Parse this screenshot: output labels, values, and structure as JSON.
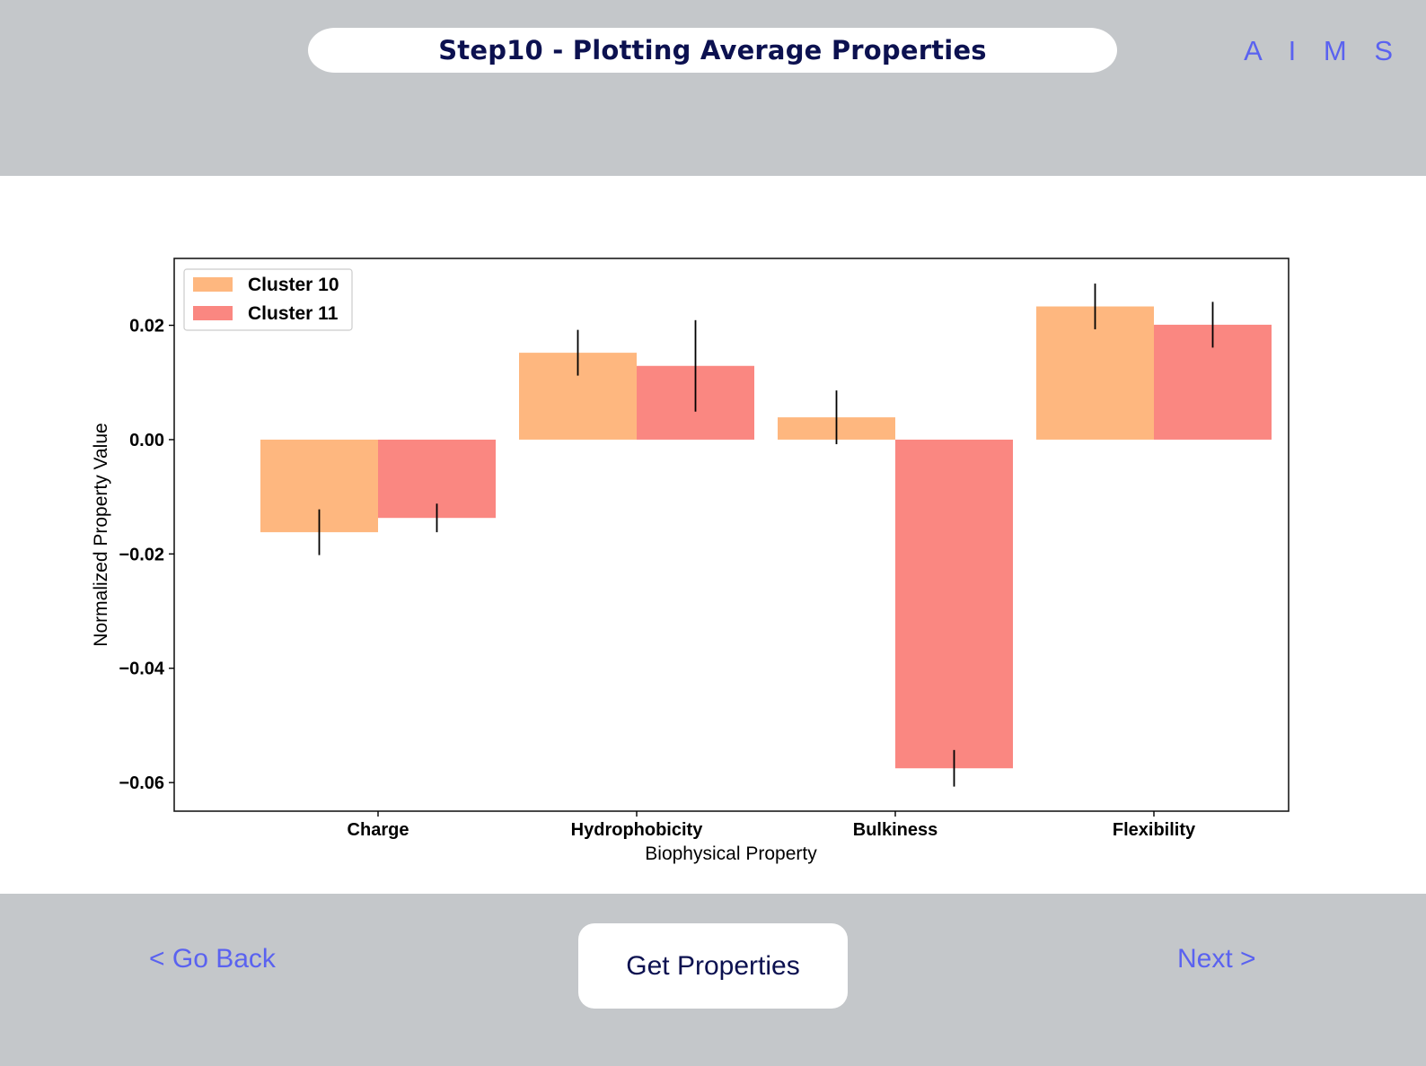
{
  "header": {
    "title": "Step10 - Plotting Average Properties",
    "brand": "A I M S"
  },
  "footer": {
    "back_label": "< Go Back",
    "primary_label": "Get Properties",
    "next_label": "Next >"
  },
  "colors": {
    "header_bg": "#c4c7ca",
    "title_text": "#0c1150",
    "accent": "#5a62f0",
    "cluster_10": "#feb77f",
    "cluster_11": "#fa8781"
  },
  "chart_data": {
    "type": "bar",
    "categories": [
      "Charge",
      "Hydrophobicity",
      "Bulkiness",
      "Flexibility"
    ],
    "series": [
      {
        "name": "Cluster 10",
        "values": [
          -0.0162,
          0.0152,
          0.0039,
          0.0233
        ],
        "errors": [
          0.004,
          0.004,
          0.0047,
          0.004
        ]
      },
      {
        "name": "Cluster 11",
        "values": [
          -0.0137,
          0.0129,
          -0.0575,
          0.0201
        ],
        "errors": [
          0.0025,
          0.008,
          0.0032,
          0.004
        ]
      }
    ],
    "xlabel": "Biophysical Property",
    "ylabel": "Normalized Property Value",
    "ylim": [
      -0.065,
      0.0317
    ],
    "yticks": [
      0.02,
      0.0,
      -0.02,
      -0.04,
      -0.06
    ],
    "ytick_labels": [
      "0.02",
      "0.00",
      "−0.02",
      "−0.04",
      "−0.06"
    ],
    "legend_position": "top-left",
    "grid": false
  }
}
